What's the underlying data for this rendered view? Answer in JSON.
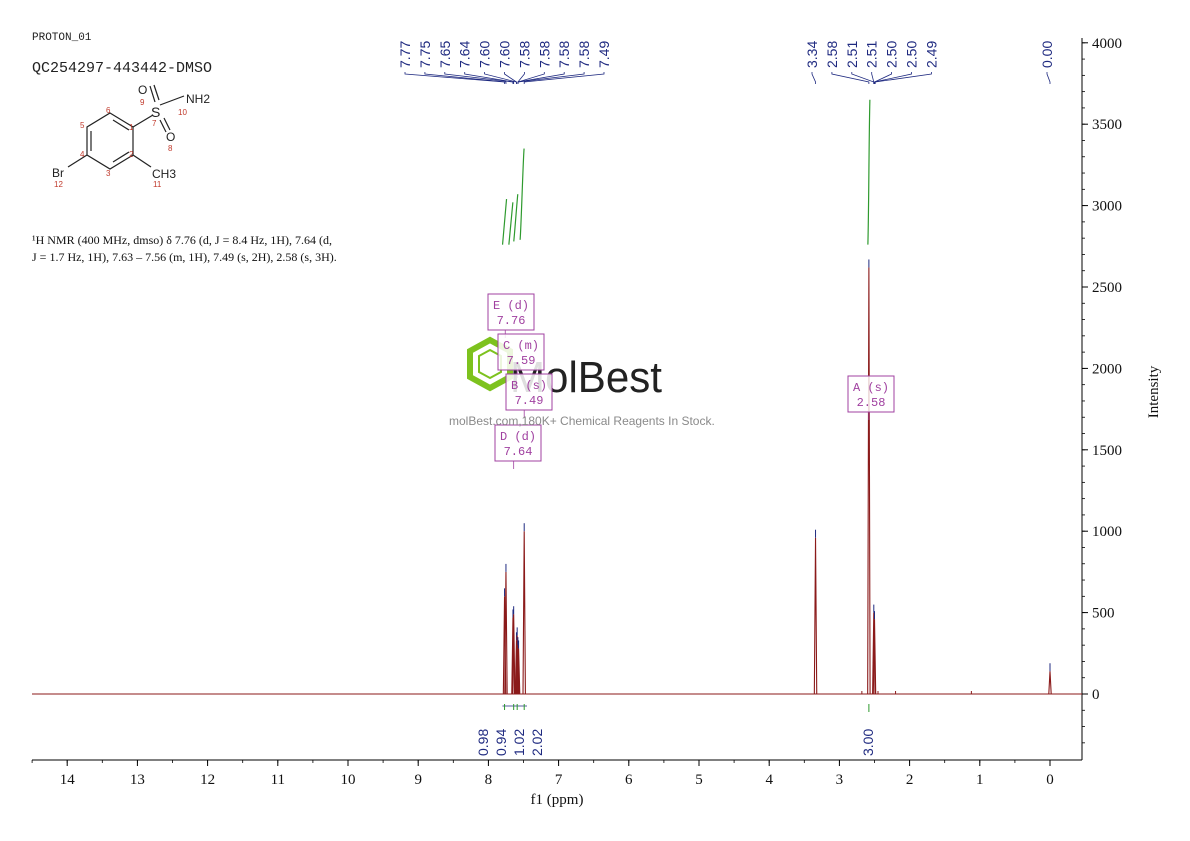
{
  "header": {
    "pulse_name": "PROTON_01",
    "sample_id": "QC254297-443442-DMSO"
  },
  "structure": {
    "atoms": {
      "br": "Br",
      "ch3": "CH3",
      "nh2": "NH2",
      "s": "S",
      "o9": "O",
      "o8": "O"
    },
    "numbers": [
      "1",
      "2",
      "3",
      "4",
      "5",
      "6",
      "7",
      "8",
      "9",
      "10",
      "11",
      "12"
    ]
  },
  "nmr_text": {
    "line1": "¹H NMR (400 MHz, dmso) δ 7.76 (d, J = 8.4 Hz, 1H), 7.64 (d,",
    "line2": "J = 1.7 Hz, 1H), 7.63 – 7.56 (m, 1H), 7.49 (s, 2H), 2.58 (s, 3H)."
  },
  "peak_labels_left": [
    "7.77",
    "7.75",
    "7.65",
    "7.64",
    "7.60",
    "7.60",
    "7.58",
    "7.58",
    "7.58",
    "7.58",
    "7.49"
  ],
  "peak_labels_mid": [
    "3.34",
    "2.58",
    "2.51",
    "2.51",
    "2.50",
    "2.50",
    "2.49"
  ],
  "peak_labels_right": [
    "0.00"
  ],
  "multiplets": [
    {
      "label": "E (d)",
      "shift": "7.76"
    },
    {
      "label": "C (m)",
      "shift": "7.59"
    },
    {
      "label": "B (s)",
      "shift": "7.49"
    },
    {
      "label": "D (d)",
      "shift": "7.64"
    },
    {
      "label": "A (s)",
      "shift": "2.58"
    }
  ],
  "integrals_left": [
    "0.98",
    "0.94",
    "1.02",
    "2.02"
  ],
  "integrals_right": [
    "3.00"
  ],
  "watermark": {
    "brand": "MolBest",
    "tagline": "molBest.com,180K+ Chemical Reagents In Stock."
  },
  "colors": {
    "spectrum": "#8b1a1a",
    "labels": "#1f2a80",
    "integral": "#2e9a2e",
    "multiplet_box": "#a040a0",
    "axis": "#000000",
    "watermark_logo": "#7dc21e"
  },
  "chart_data": {
    "type": "line",
    "title": "",
    "xlabel": "f1 (ppm)",
    "ylabel": "Intensity",
    "x_reversed": true,
    "xlim": [
      14.5,
      -0.45
    ],
    "ylim": [
      -400,
      4100
    ],
    "x_ticks": [
      14,
      13,
      12,
      11,
      10,
      9,
      8,
      7,
      6,
      5,
      4,
      3,
      2,
      1,
      0
    ],
    "y_ticks": [
      0,
      500,
      1000,
      1500,
      2000,
      2500,
      3000,
      3500,
      4000
    ],
    "peaks": [
      {
        "ppm": 7.77,
        "intensity": 600
      },
      {
        "ppm": 7.75,
        "intensity": 750
      },
      {
        "ppm": 7.65,
        "intensity": 470
      },
      {
        "ppm": 7.64,
        "intensity": 490
      },
      {
        "ppm": 7.6,
        "intensity": 330
      },
      {
        "ppm": 7.59,
        "intensity": 360
      },
      {
        "ppm": 7.58,
        "intensity": 300
      },
      {
        "ppm": 7.57,
        "intensity": 280
      },
      {
        "ppm": 7.49,
        "intensity": 1000
      },
      {
        "ppm": 3.34,
        "intensity": 960
      },
      {
        "ppm": 2.58,
        "intensity": 2620
      },
      {
        "ppm": 2.51,
        "intensity": 500
      },
      {
        "ppm": 2.5,
        "intensity": 460
      },
      {
        "ppm": 0.0,
        "intensity": 140
      }
    ],
    "integral_curves": [
      {
        "from": 7.8,
        "to": 7.45,
        "top_intensity": 3350
      },
      {
        "from": 2.62,
        "to": 2.55,
        "top_intensity": 3650
      }
    ]
  }
}
